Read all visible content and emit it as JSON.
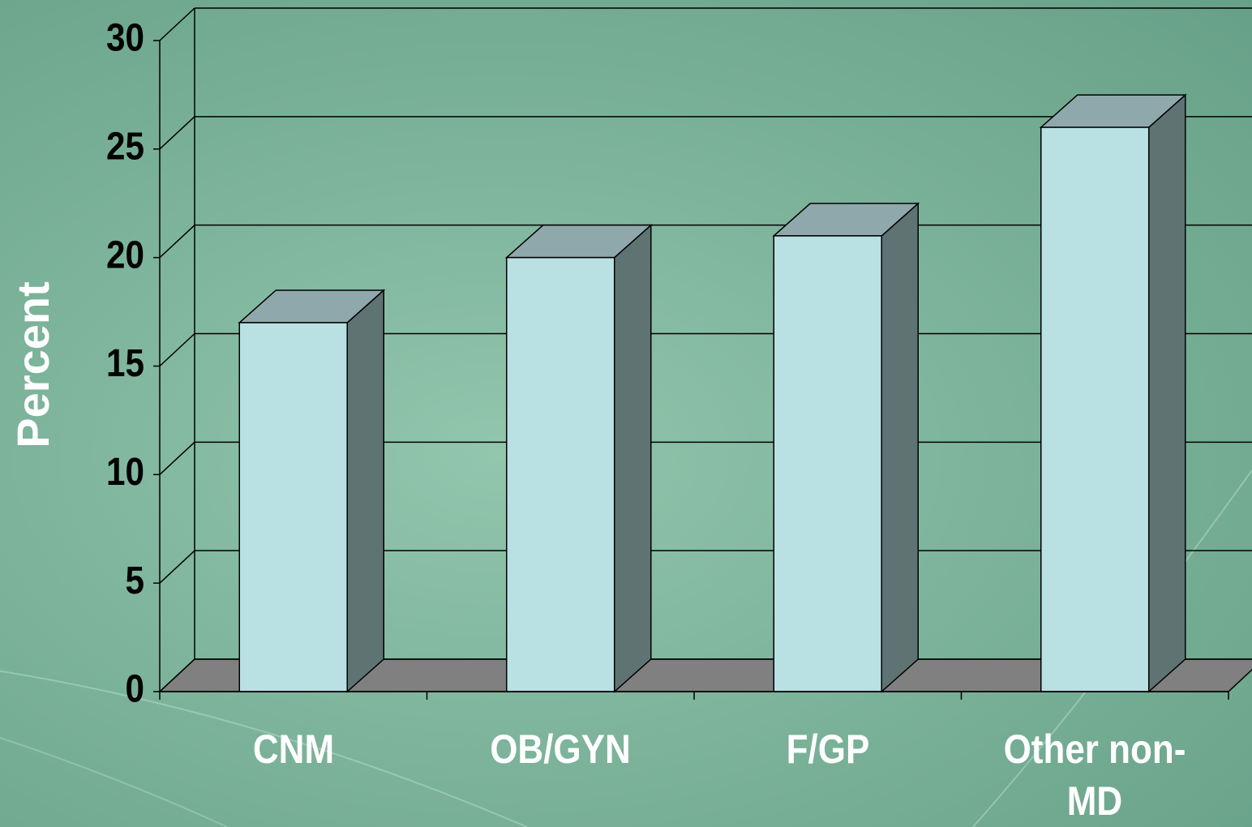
{
  "chart_data": {
    "type": "bar",
    "y_label": "Percent",
    "categories": [
      "CNM",
      "OB/GYN",
      "F/GP",
      "Other non-MD"
    ],
    "values": [
      17,
      20,
      21,
      26
    ],
    "color": "#b9e0e3",
    "ylim": [
      0,
      30
    ],
    "yticks": [
      0,
      5,
      10,
      15,
      20,
      25,
      30
    ],
    "grid": true
  }
}
